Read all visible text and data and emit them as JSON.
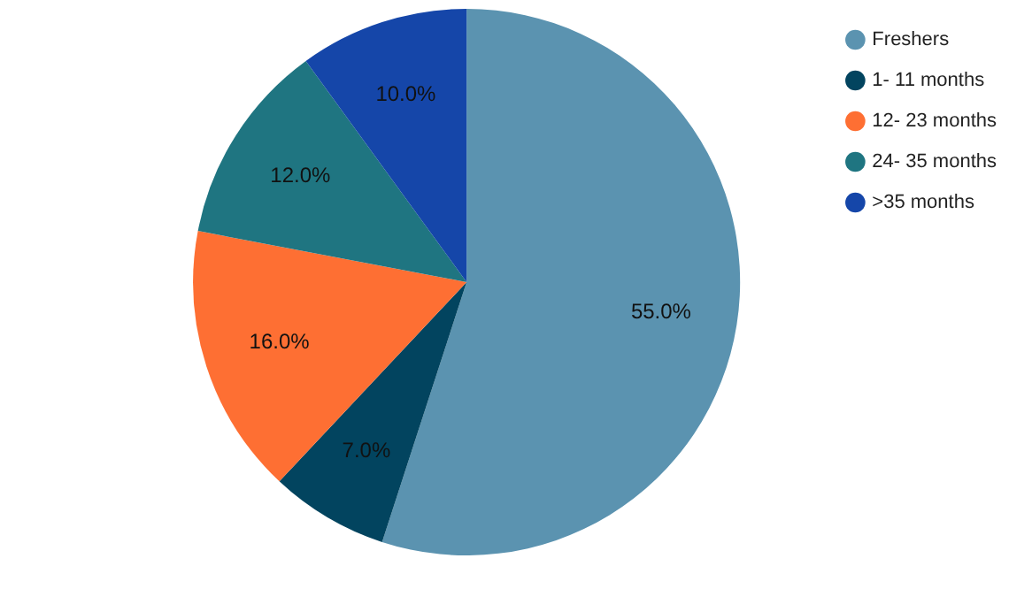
{
  "chart_data": {
    "type": "pie",
    "categories": [
      "Freshers",
      "1- 11 months",
      "12- 23 months",
      "24- 35 months",
      ">35 months"
    ],
    "values": [
      55,
      7,
      16,
      12,
      10
    ],
    "colors": [
      "#5b93b0",
      "#02445f",
      "#fe6f33",
      "#1f7581",
      "#1546a9"
    ],
    "value_labels": [
      "55.0%",
      "7.0%",
      "16.0%",
      "12.0%",
      "10.0%"
    ],
    "legend": "top right"
  }
}
